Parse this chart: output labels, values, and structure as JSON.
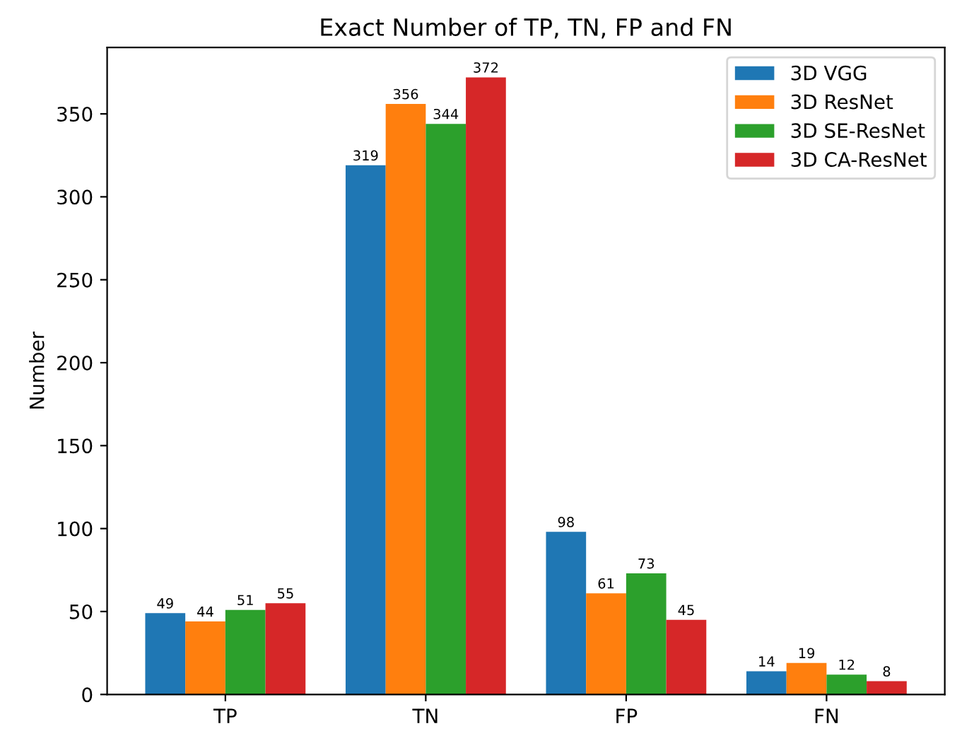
{
  "chart_data": {
    "type": "bar",
    "title": "Exact Number of TP, TN, FP and FN",
    "ylabel": "Number",
    "categories": [
      "TP",
      "TN",
      "FP",
      "FN"
    ],
    "series": [
      {
        "name": "3D VGG",
        "color": "#1f77b4",
        "values": [
          49,
          319,
          98,
          14
        ]
      },
      {
        "name": "3D ResNet",
        "color": "#ff7f0e",
        "values": [
          44,
          356,
          61,
          19
        ]
      },
      {
        "name": "3D SE-ResNet",
        "color": "#2ca02c",
        "values": [
          51,
          344,
          73,
          12
        ]
      },
      {
        "name": "3D CA-ResNet",
        "color": "#d62728",
        "values": [
          55,
          372,
          45,
          8
        ]
      }
    ],
    "ylim": [
      0,
      390
    ],
    "yticks": [
      0,
      50,
      100,
      150,
      200,
      250,
      300,
      350
    ],
    "data_labels": true,
    "legend": "top right",
    "grid": false
  }
}
